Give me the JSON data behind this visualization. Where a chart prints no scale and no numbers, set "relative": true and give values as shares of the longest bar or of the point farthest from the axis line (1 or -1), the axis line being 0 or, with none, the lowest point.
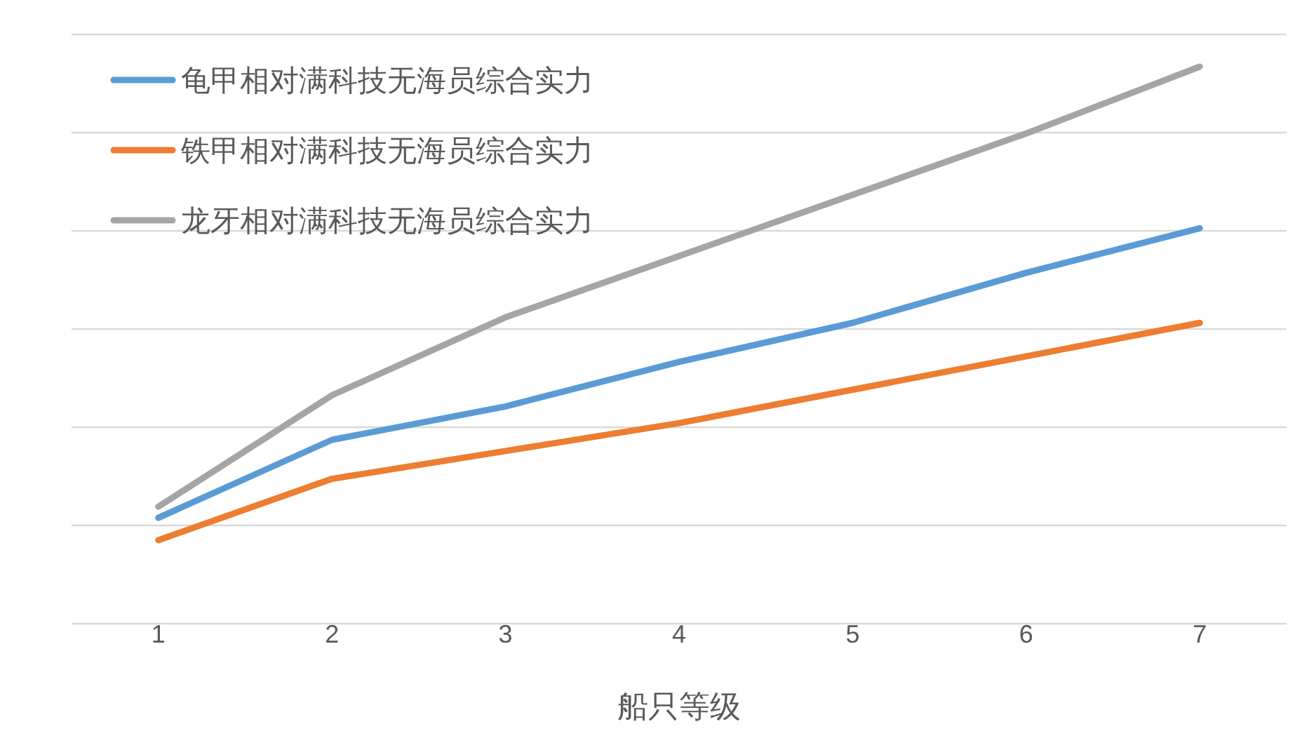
{
  "chart_data": {
    "type": "line",
    "xlabel": "船只等级",
    "categories": [
      "1",
      "2",
      "3",
      "4",
      "5",
      "6",
      "7"
    ],
    "relative": true,
    "grid": "y",
    "legend": "top left",
    "series": [
      {
        "name": "龟甲相对满科技无海员综合实力",
        "color": "#5b9bd5",
        "values": [
          0.19,
          0.33,
          0.39,
          0.47,
          0.54,
          0.63,
          0.71
        ]
      },
      {
        "name": "铁甲相对满科技无海员综合实力",
        "color": "#ed7d31",
        "values": [
          0.15,
          0.26,
          0.31,
          0.36,
          0.42,
          0.48,
          0.54
        ]
      },
      {
        "name": "龙牙相对满科技无海员综合实力",
        "color": "#a5a5a5",
        "values": [
          0.21,
          0.41,
          0.55,
          0.66,
          0.77,
          0.88,
          1.0
        ]
      }
    ]
  }
}
